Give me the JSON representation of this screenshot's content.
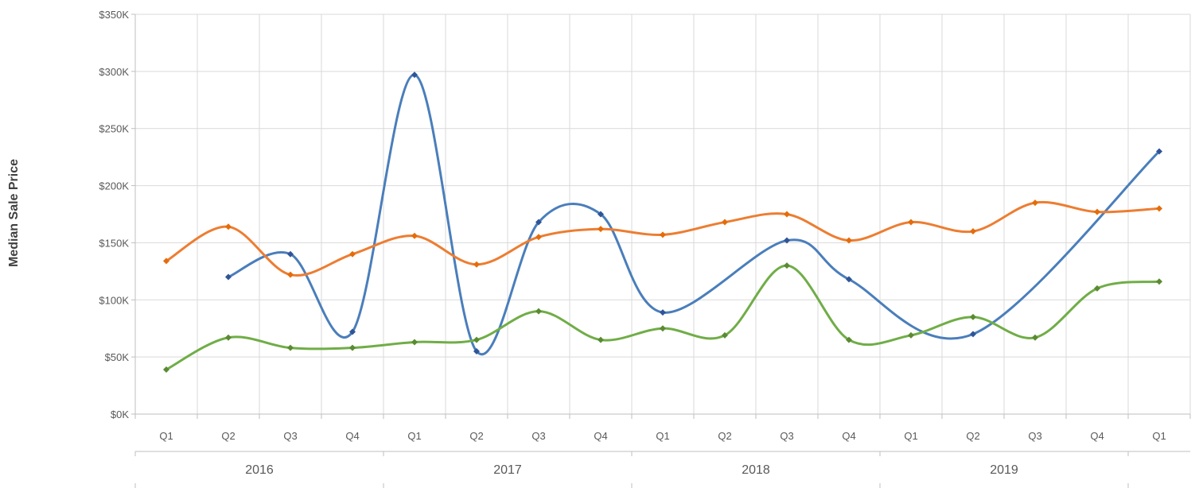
{
  "chart_data": {
    "type": "line",
    "title": "",
    "xlabel": "",
    "ylabel": "Median Sale Price",
    "ylim": [
      0,
      350000
    ],
    "y_ticks": [
      "$0K",
      "$50K",
      "$100K",
      "$150K",
      "$200K",
      "$250K",
      "$300K",
      "$350K"
    ],
    "categories": [
      "Q1",
      "Q2",
      "Q3",
      "Q4",
      "Q1",
      "Q2",
      "Q3",
      "Q4",
      "Q1",
      "Q2",
      "Q3",
      "Q4",
      "Q1",
      "Q2",
      "Q3",
      "Q4",
      "Q1"
    ],
    "years": [
      {
        "label": "2016",
        "start": 0,
        "count": 4
      },
      {
        "label": "2017",
        "start": 4,
        "count": 4
      },
      {
        "label": "2018",
        "start": 8,
        "count": 4
      },
      {
        "label": "2019",
        "start": 12,
        "count": 4
      }
    ],
    "grid": true,
    "legend": "none",
    "series": [
      {
        "color": "#4a7ebb",
        "smooth": true,
        "values": [
          null,
          120000,
          140000,
          72000,
          297000,
          55000,
          168000,
          175000,
          89000,
          null,
          152000,
          118000,
          null,
          70000,
          null,
          null,
          230000
        ]
      },
      {
        "color": "#ed7d31",
        "smooth": true,
        "values": [
          134000,
          164000,
          122000,
          140000,
          156000,
          131000,
          155000,
          162000,
          157000,
          168000,
          175000,
          152000,
          168000,
          160000,
          185000,
          177000,
          180000
        ]
      },
      {
        "color": "#70ad47",
        "smooth": true,
        "values": [
          39000,
          67000,
          58000,
          58000,
          63000,
          65000,
          90000,
          65000,
          75000,
          69000,
          130000,
          65000,
          69000,
          85000,
          67000,
          110000,
          116000
        ]
      }
    ]
  }
}
